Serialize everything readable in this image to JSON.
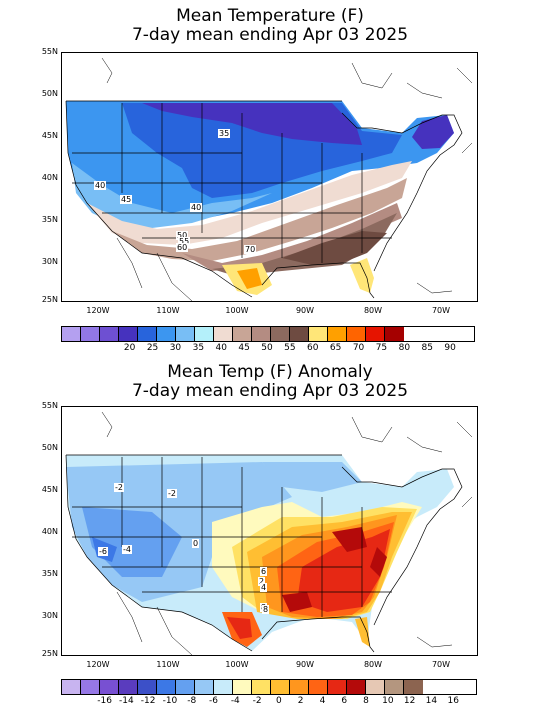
{
  "top_map": {
    "title_line1": "Mean Temperature (F)",
    "title_line2": "7-day mean ending Apr 03 2025",
    "lat_labels": [
      "55N",
      "50N",
      "45N",
      "40N",
      "35N",
      "30N",
      "25N"
    ],
    "lon_labels": [
      "120W",
      "110W",
      "100W",
      "90W",
      "80W",
      "70W"
    ],
    "contour_labels": [
      "35",
      "40",
      "45",
      "40",
      "50",
      "55",
      "60",
      "70"
    ],
    "colorbar": {
      "colors": [
        "#b4a0f0",
        "#9278e6",
        "#6e50d2",
        "#4632be",
        "#2864dc",
        "#3c96f0",
        "#78bef5",
        "#b4f0fa",
        "#f0dcd2",
        "#c8a596",
        "#b48c82",
        "#8c6a5f",
        "#6e4b41",
        "#ffe678",
        "#ffa000",
        "#ff6400",
        "#e61400",
        "#a50000"
      ],
      "labels": [
        "20",
        "25",
        "30",
        "35",
        "40",
        "45",
        "50",
        "55",
        "60",
        "65",
        "70",
        "75",
        "80",
        "85",
        "90"
      ]
    }
  },
  "bottom_map": {
    "title_line1": "Mean Temp (F) Anomaly",
    "title_line2": "7-day mean ending Apr 03 2025",
    "lat_labels": [
      "55N",
      "50N",
      "45N",
      "40N",
      "35N",
      "30N",
      "25N"
    ],
    "lon_labels": [
      "120W",
      "110W",
      "100W",
      "90W",
      "80W",
      "70W"
    ],
    "contour_labels": [
      "-2",
      "-2",
      "-4",
      "-6",
      "0",
      "2",
      "4",
      "6",
      "8",
      "8"
    ],
    "colorbar": {
      "colors": [
        "#c8b4f0",
        "#9678e6",
        "#7850d2",
        "#5a3cbe",
        "#3c50c8",
        "#3c78e6",
        "#64a0f0",
        "#96c8f5",
        "#c8ebfa",
        "#fffabe",
        "#ffe164",
        "#ffbe32",
        "#ff961e",
        "#ff6414",
        "#e62814",
        "#b40a0a",
        "#e6c8b4",
        "#b4967f",
        "#8c6450"
      ],
      "labels": [
        "-16",
        "-14",
        "-12",
        "-10",
        "-8",
        "-6",
        "-4",
        "-2",
        "0",
        "2",
        "4",
        "6",
        "8",
        "10",
        "12",
        "14",
        "16"
      ]
    }
  }
}
